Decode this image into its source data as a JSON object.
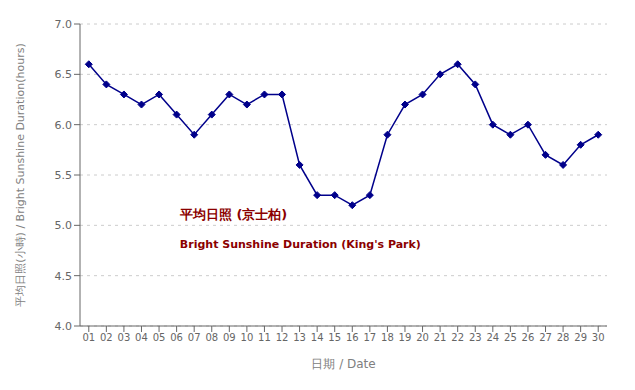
{
  "chart_data": {
    "type": "line",
    "x": [
      1,
      2,
      3,
      4,
      5,
      6,
      7,
      8,
      9,
      10,
      11,
      12,
      13,
      14,
      15,
      16,
      17,
      18,
      19,
      20,
      21,
      22,
      23,
      24,
      25,
      26,
      27,
      28,
      29,
      30
    ],
    "values": [
      6.6,
      6.4,
      6.3,
      6.2,
      6.3,
      6.1,
      5.9,
      6.1,
      6.3,
      6.2,
      6.3,
      6.3,
      5.6,
      5.3,
      5.3,
      5.2,
      5.3,
      5.9,
      6.2,
      6.3,
      6.5,
      6.6,
      6.4,
      6.0,
      5.9,
      6.0,
      5.7,
      5.6,
      5.8,
      5.9
    ],
    "xlim": [
      0.5,
      30.5
    ],
    "xticks": [
      {
        "value": 1,
        "label": "01"
      },
      {
        "value": 2,
        "label": "02"
      },
      {
        "value": 3,
        "label": "03"
      },
      {
        "value": 4,
        "label": "04"
      },
      {
        "value": 5,
        "label": "05"
      },
      {
        "value": 6,
        "label": "06"
      },
      {
        "value": 7,
        "label": "07"
      },
      {
        "value": 8,
        "label": "08"
      },
      {
        "value": 9,
        "label": "09"
      },
      10,
      11,
      12,
      13,
      14,
      15,
      16,
      17,
      18,
      19,
      20,
      21,
      22,
      23,
      24,
      25,
      26,
      27,
      28,
      29,
      30
    ],
    "ylim": [
      4.0,
      7.0
    ],
    "yticks": [
      {
        "value": 4,
        "label": "4.0"
      },
      4.5,
      {
        "value": 5,
        "label": "5.0"
      },
      5.5,
      {
        "value": 6,
        "label": "6.0"
      },
      6.5,
      {
        "value": 7,
        "label": "7.0"
      }
    ],
    "xlabel": "日期 / Date",
    "ylabel": "平均日照(小時) / Bright Sunshine Duration(hours)",
    "color": "#00008B",
    "marker": "diamond",
    "grid": true,
    "annotations": [
      {
        "text": "平均日照 (京士柏)",
        "color": "#8B0000"
      },
      {
        "text": "Bright Sunshine Duration (King's Park)",
        "color": "#8B0000"
      }
    ]
  }
}
